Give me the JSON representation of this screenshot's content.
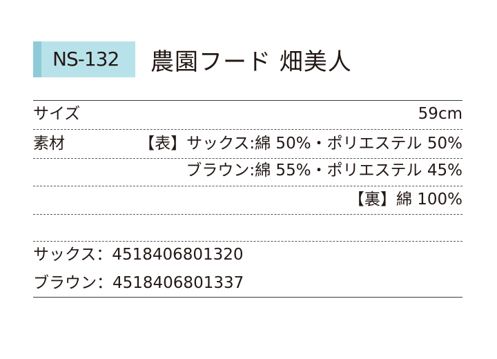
{
  "header": {
    "product_code": "NS-132",
    "product_name": "農園フード 畑美人"
  },
  "specs": {
    "size_label": "サイズ",
    "size_value": "59cm",
    "material_label": "素材",
    "material_lines": [
      "【表】サックス:綿 50%・ポリエステル 50%",
      "ブラウン:綿 55%・ポリエステル 45%",
      "【裏】綿 100%"
    ]
  },
  "jan_codes": [
    {
      "label": "サックス：4518406801320"
    },
    {
      "label": "ブラウン：4518406801337"
    }
  ],
  "colors": {
    "badge": "#b8e2ea",
    "badge_strip": "#8ecbd6"
  }
}
